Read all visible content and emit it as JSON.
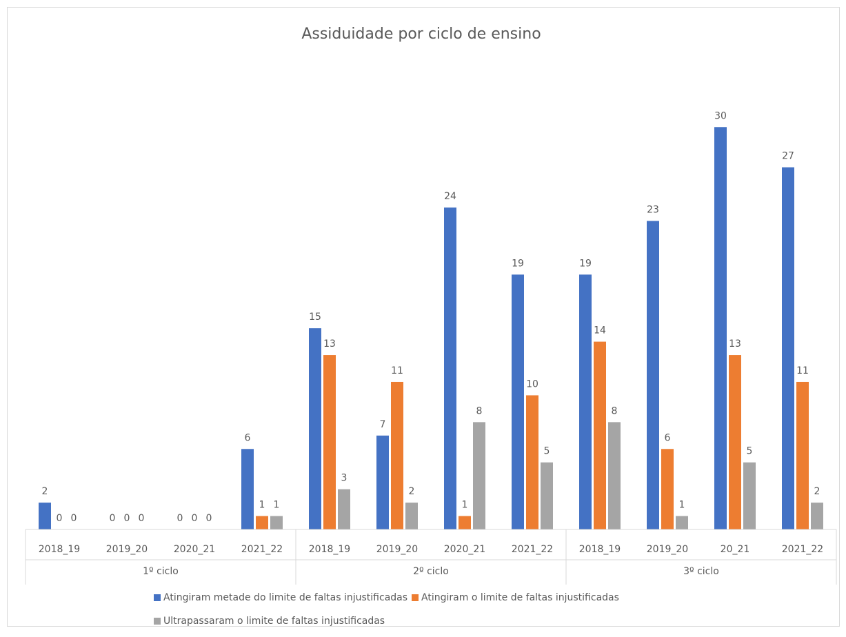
{
  "chart_data": {
    "type": "bar",
    "title": "Assiduidade por ciclo de ensino",
    "categories": [
      "2018_19",
      "2019_20",
      "2020_21",
      "2021_22",
      "2018_19",
      "2019_20",
      "2020_21",
      "2021_22",
      "2018_19",
      "2019_20",
      "20_21",
      "2021_22"
    ],
    "category_groups": [
      "1º ciclo",
      "2º ciclo",
      "3º ciclo"
    ],
    "series": [
      {
        "name": "Atingiram metade do limite de faltas injustificadas",
        "color": "#4472c4",
        "values": [
          2,
          0,
          0,
          6,
          15,
          7,
          24,
          19,
          19,
          23,
          30,
          27
        ]
      },
      {
        "name": "Atingiram o limite de faltas injustificadas",
        "color": "#ed7d31",
        "values": [
          0,
          0,
          0,
          1,
          13,
          11,
          1,
          10,
          14,
          6,
          13,
          11
        ]
      },
      {
        "name": "Ultrapassaram o limite de faltas injustificadas",
        "color": "#a5a5a5",
        "values": [
          0,
          0,
          0,
          1,
          3,
          2,
          8,
          5,
          8,
          1,
          5,
          2
        ]
      }
    ],
    "ylim": [
      0,
      35
    ]
  }
}
